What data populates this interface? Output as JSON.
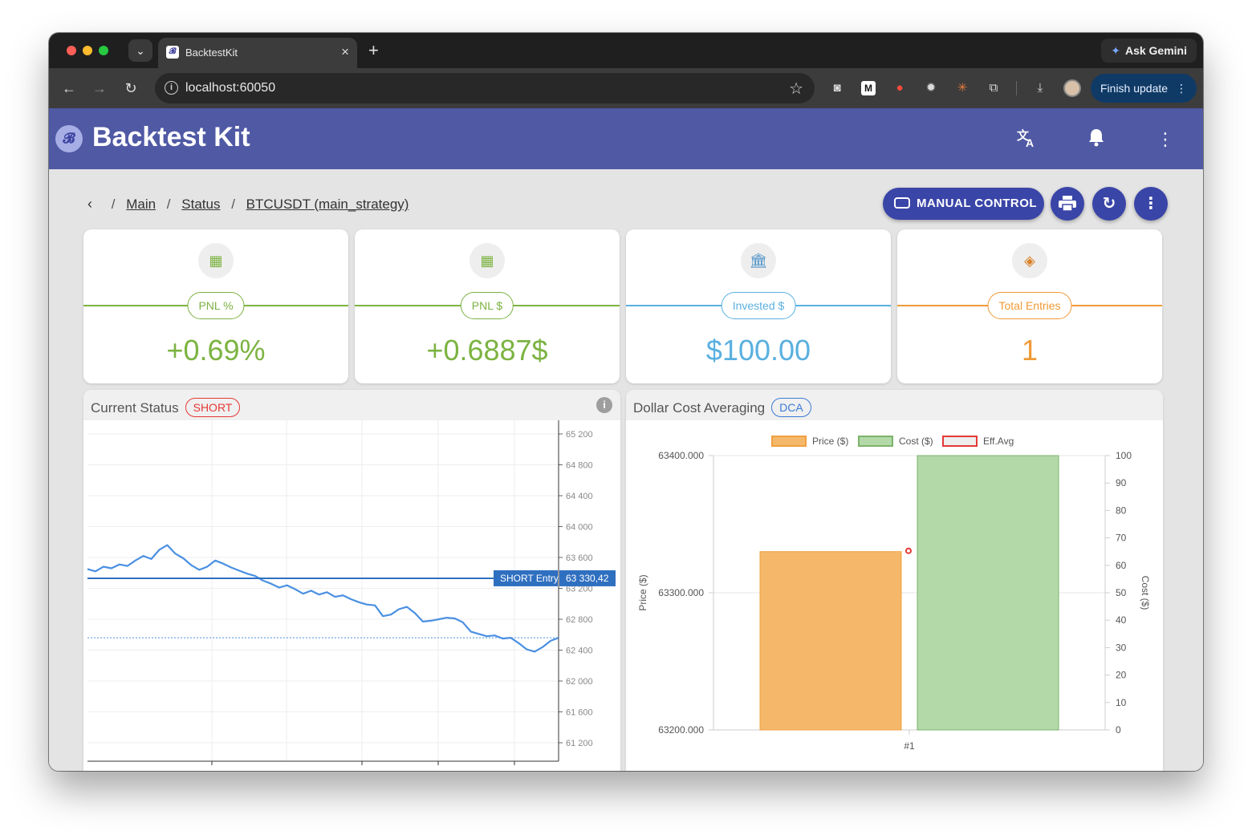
{
  "browser": {
    "tab_title": "BacktestKit",
    "url": "localhost:60050",
    "gemini_label": "Ask Gemini",
    "finish_update_label": "Finish update"
  },
  "app": {
    "title": "Backtest Kit"
  },
  "breadcrumb": {
    "items": [
      "Main",
      "Status",
      "BTCUSDT (main_strategy)"
    ]
  },
  "actions": {
    "manual_control_label": "MANUAL CONTROL"
  },
  "cards": [
    {
      "label": "PNL %",
      "value": "+0.69%",
      "color": "#7cb342"
    },
    {
      "label": "PNL $",
      "value": "+0.6887$",
      "color": "#7cb342"
    },
    {
      "label": "Invested $",
      "value": "$100.00",
      "color": "#5ab0e0"
    },
    {
      "label": "Total Entries",
      "value": "1",
      "color": "#f09a37"
    }
  ],
  "status_panel": {
    "title": "Current Status",
    "badge": "SHORT",
    "badge_color": "#e53935",
    "entry_label": "SHORT Entry",
    "entry_value": "63 330,42",
    "line_color": "#4a90e2"
  },
  "dca_panel": {
    "title": "Dollar Cost Averaging",
    "badge": "DCA",
    "badge_color": "#3a7bd5"
  },
  "price_chart": {
    "type": "line",
    "y_ticks": [
      "65 200",
      "64 800",
      "64 400",
      "64 000",
      "63 600",
      "63 200",
      "62 800",
      "62 400",
      "62 000",
      "61 600",
      "61 200"
    ],
    "ylim": [
      61100,
      65300
    ],
    "entry_price": 63330.42,
    "series": [
      {
        "values": [
          63450,
          63420,
          63480,
          63460,
          63510,
          63490,
          63560,
          63620,
          63580,
          63700,
          63760,
          63650,
          63590,
          63500,
          63440,
          63480,
          63560,
          63520,
          63470,
          63430,
          63390,
          63360,
          63300,
          63260,
          63210,
          63240,
          63190,
          63130,
          63170,
          63120,
          63150,
          63090,
          63110,
          63060,
          63020,
          62990,
          62980,
          62840,
          62860,
          62930,
          62960,
          62880,
          62770,
          62780,
          62800,
          62820,
          62810,
          62760,
          62640,
          62610,
          62580,
          62590,
          62550,
          62560,
          62490,
          62410,
          62380,
          62440,
          62520,
          62560
        ]
      }
    ]
  },
  "dca_chart": {
    "type": "bar",
    "legend": [
      "Price ($)",
      "Cost ($)",
      "Eff.Avg"
    ],
    "categories": [
      "#1"
    ],
    "series": [
      {
        "name": "Price ($)",
        "values": [
          63330
        ],
        "color": "#f5b86b"
      },
      {
        "name": "Cost ($)",
        "values": [
          100
        ],
        "color": "#b3d9a8"
      },
      {
        "name": "Eff.Avg",
        "values": [
          63330
        ],
        "color": "#e53935"
      }
    ],
    "y_left_ticks": [
      "63400.000",
      "63300.000",
      "63200.000"
    ],
    "y_right_ticks": [
      "100",
      "90",
      "80",
      "70",
      "60",
      "50",
      "40",
      "30",
      "20",
      "10",
      "0"
    ],
    "ylabel_left": "Price ($)",
    "ylabel_right": "Cost ($)",
    "ylim_left": [
      63200,
      63400
    ],
    "ylim_right": [
      0,
      100
    ]
  }
}
